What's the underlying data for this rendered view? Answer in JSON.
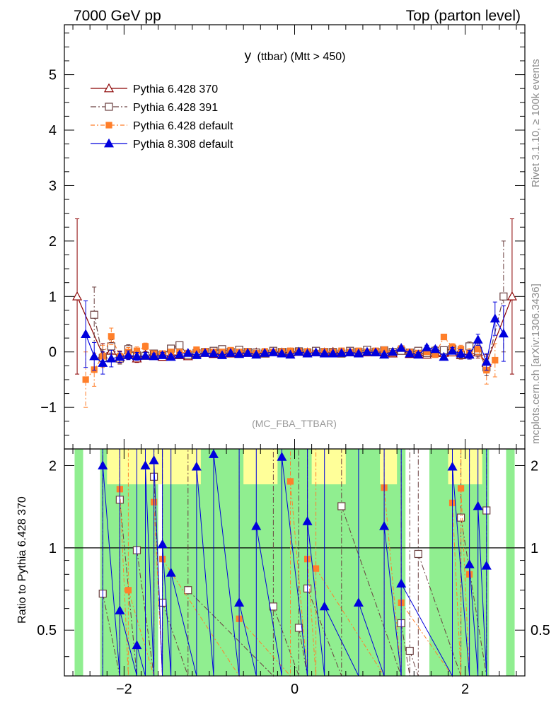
{
  "header": {
    "left": "7000 GeV pp",
    "right": "Top (parton level)"
  },
  "side_labels": {
    "rivet": "Rivet 3.1.10, ≥ 100k events",
    "mcplots": "mcplots.cern.ch [arXiv:1306.3436]"
  },
  "colors": {
    "p6_370": "#8b0000",
    "p6_391": "#6b4040",
    "p6_default": "#ff7f2a",
    "p8_default": "#0000dd",
    "band_green": "#90ee90",
    "band_yellow": "#ffff99"
  },
  "chart_data": [
    {
      "type": "line",
      "title": "y (ttbar) (Mtt > 450)",
      "title_main": "y",
      "title_sub": "(ttbar) (Mtt > 450)",
      "analysis_label": "(MC_FBA_TTBAR)",
      "xlim": [
        -2.7,
        2.7
      ],
      "ylim": [
        -1.75,
        5.9
      ],
      "yticks": [
        -1,
        0,
        1,
        2,
        3,
        4,
        5
      ],
      "ytick_labels": [
        "−1",
        "0",
        "1",
        "2",
        "3",
        "4",
        "5"
      ],
      "legend_position": "top-left",
      "x": [
        -2.55,
        -2.45,
        -2.35,
        -2.25,
        -2.15,
        -2.05,
        -1.95,
        -1.85,
        -1.75,
        -1.65,
        -1.55,
        -1.45,
        -1.35,
        -1.25,
        -1.15,
        -1.05,
        -0.95,
        -0.85,
        -0.75,
        -0.65,
        -0.55,
        -0.45,
        -0.35,
        -0.25,
        -0.15,
        -0.05,
        0.05,
        0.15,
        0.25,
        0.35,
        0.45,
        0.55,
        0.65,
        0.75,
        0.85,
        0.95,
        1.05,
        1.15,
        1.25,
        1.35,
        1.45,
        1.55,
        1.65,
        1.75,
        1.85,
        1.95,
        2.05,
        2.15,
        2.25,
        2.35,
        2.45,
        2.55
      ],
      "series": [
        {
          "name": "Pythia 6.428 370",
          "marker": "triangle-open",
          "dash": "",
          "values": [
            1.0,
            null,
            null,
            -0.05,
            0.02,
            -0.1,
            -0.05,
            -0.12,
            -0.05,
            -0.06,
            -0.09,
            -0.05,
            -0.06,
            -0.08,
            -0.03,
            -0.02,
            -0.04,
            -0.01,
            -0.03,
            -0.01,
            -0.02,
            -0.01,
            -0.03,
            0.0,
            -0.01,
            -0.01,
            0.0,
            -0.01,
            -0.01,
            -0.01,
            0.0,
            -0.01,
            -0.01,
            -0.02,
            -0.01,
            -0.01,
            0.0,
            -0.03,
            0.02,
            -0.04,
            -0.01,
            -0.05,
            -0.02,
            -0.02,
            -0.01,
            -0.06,
            -0.05,
            -0.01,
            -0.2,
            null,
            null,
            1.0
          ],
          "errors": [
            1.4,
            0,
            0,
            0.2,
            0.15,
            0.1,
            0.08,
            0.07,
            0.06,
            0.05,
            0.05,
            0.04,
            0.04,
            0.04,
            0.03,
            0.03,
            0.03,
            0.03,
            0.03,
            0.03,
            0.03,
            0.03,
            0.03,
            0.03,
            0.03,
            0.03,
            0.03,
            0.03,
            0.03,
            0.03,
            0.03,
            0.03,
            0.03,
            0.03,
            0.03,
            0.03,
            0.03,
            0.03,
            0.04,
            0.04,
            0.04,
            0.04,
            0.05,
            0.05,
            0.06,
            0.07,
            0.08,
            0.1,
            0.15,
            0,
            0,
            1.4
          ]
        },
        {
          "name": "Pythia 6.428 391",
          "marker": "square-open",
          "dash": "8,3,2,3",
          "values": [
            null,
            null,
            0.67,
            -0.11,
            0.1,
            -0.12,
            0.05,
            -0.06,
            -0.07,
            -0.03,
            -0.05,
            0.06,
            0.12,
            -0.05,
            -0.02,
            0.0,
            0.02,
            0.05,
            0.0,
            0.04,
            0.0,
            -0.01,
            -0.03,
            0.02,
            0.0,
            0.0,
            0.01,
            -0.01,
            0.02,
            0.0,
            0.0,
            -0.03,
            0.02,
            0.0,
            0.04,
            0.0,
            0.03,
            0.0,
            0.02,
            -0.01,
            0.02,
            -0.02,
            0.02,
            0.03,
            0.05,
            -0.05,
            0.1,
            0.02,
            -0.28,
            null,
            1.0,
            null
          ],
          "errors": [
            0,
            0,
            0.5,
            0.15,
            0.12,
            0.1,
            0.08,
            0.07,
            0.06,
            0.05,
            0.05,
            0.04,
            0.04,
            0.04,
            0.03,
            0.03,
            0.03,
            0.03,
            0.03,
            0.03,
            0.03,
            0.03,
            0.03,
            0.03,
            0.03,
            0.03,
            0.03,
            0.03,
            0.03,
            0.03,
            0.03,
            0.03,
            0.03,
            0.03,
            0.03,
            0.03,
            0.03,
            0.03,
            0.04,
            0.04,
            0.04,
            0.04,
            0.05,
            0.05,
            0.06,
            0.07,
            0.08,
            0.1,
            0.15,
            0,
            1.0,
            0
          ]
        },
        {
          "name": "Pythia 6.428 default",
          "marker": "square-filled",
          "dash": "6,3,2,3",
          "values": [
            null,
            -0.5,
            -0.32,
            -0.08,
            0.28,
            -0.08,
            0.0,
            0.02,
            0.1,
            -0.03,
            -0.03,
            0.0,
            0.0,
            -0.02,
            0.04,
            0.01,
            0.0,
            0.0,
            0.03,
            0.0,
            0.01,
            -0.02,
            0.01,
            0.0,
            0.01,
            0.02,
            0.01,
            0.01,
            -0.02,
            0.01,
            0.0,
            0.02,
            0.0,
            0.02,
            0.0,
            0.02,
            0.04,
            -0.02,
            0.06,
            0.0,
            -0.02,
            0.0,
            -0.05,
            0.27,
            0.09,
            0.05,
            -0.02,
            0.05,
            -0.33,
            -0.15,
            null,
            null
          ],
          "errors": [
            0,
            0.5,
            0.3,
            0.2,
            0.15,
            0.1,
            0.08,
            0.07,
            0.06,
            0.05,
            0.05,
            0.04,
            0.04,
            0.04,
            0.03,
            0.03,
            0.03,
            0.03,
            0.03,
            0.03,
            0.03,
            0.03,
            0.03,
            0.03,
            0.03,
            0.03,
            0.03,
            0.03,
            0.03,
            0.03,
            0.03,
            0.03,
            0.03,
            0.03,
            0.03,
            0.03,
            0.03,
            0.03,
            0.04,
            0.04,
            0.04,
            0.04,
            0.05,
            0.05,
            0.06,
            0.07,
            0.08,
            0.1,
            0.25,
            0.3,
            0,
            0
          ]
        },
        {
          "name": "Pythia 8.308 default",
          "marker": "triangle-filled",
          "dash": "",
          "values": [
            null,
            0.32,
            -0.08,
            -0.2,
            -0.12,
            -0.09,
            -0.06,
            -0.08,
            -0.07,
            -0.08,
            -0.06,
            -0.09,
            -0.05,
            -0.02,
            -0.06,
            -0.02,
            -0.03,
            -0.06,
            -0.02,
            -0.04,
            -0.02,
            -0.05,
            -0.02,
            -0.01,
            -0.03,
            -0.05,
            0.0,
            -0.03,
            -0.01,
            -0.03,
            -0.03,
            -0.02,
            -0.01,
            -0.03,
            0.0,
            -0.01,
            -0.05,
            0.0,
            0.07,
            -0.03,
            -0.05,
            0.08,
            0.05,
            -0.09,
            0.02,
            -0.03,
            -0.05,
            0.22,
            -0.18,
            0.6,
            0.33,
            null
          ],
          "errors": [
            0,
            0.6,
            0.25,
            0.2,
            0.15,
            0.1,
            0.08,
            0.07,
            0.06,
            0.05,
            0.05,
            0.04,
            0.04,
            0.04,
            0.03,
            0.03,
            0.03,
            0.03,
            0.03,
            0.03,
            0.03,
            0.03,
            0.03,
            0.03,
            0.03,
            0.03,
            0.03,
            0.03,
            0.03,
            0.03,
            0.03,
            0.03,
            0.03,
            0.03,
            0.03,
            0.03,
            0.03,
            0.03,
            0.04,
            0.04,
            0.04,
            0.04,
            0.05,
            0.05,
            0.06,
            0.07,
            0.08,
            0.1,
            0.15,
            0.3,
            0.5,
            0
          ]
        }
      ]
    },
    {
      "type": "line",
      "ylabel": "Ratio to Pythia 6.428 370",
      "xlim": [
        -2.7,
        2.7
      ],
      "ylim": [
        0.34,
        2.3
      ],
      "xticks": [
        -2,
        0,
        2
      ],
      "xtick_labels": [
        "−2",
        "0",
        "2"
      ],
      "yticks": [
        0.5,
        1,
        2
      ],
      "ytick_labels": [
        "0.5",
        "1",
        "2"
      ],
      "reference_line": 1,
      "band_green": [
        [
          -2.58,
          -2.48
        ],
        [
          -2.28,
          -1.6
        ],
        [
          -1.55,
          1.3
        ],
        [
          1.58,
          2.28
        ],
        [
          2.48,
          2.58
        ]
      ],
      "band_yellow": [
        [
          -2.2,
          -1.1
        ],
        [
          -0.6,
          -0.2
        ],
        [
          0.2,
          0.6
        ],
        [
          1.0,
          1.2
        ],
        [
          1.8,
          2.2
        ]
      ],
      "series": [
        {
          "name": "Pythia 6.428 391",
          "points": [
            [
              -2.25,
              0.68
            ],
            [
              -2.05,
              1.5
            ],
            [
              -1.85,
              0.98
            ],
            [
              -1.65,
              1.82
            ],
            [
              -1.55,
              0.63
            ],
            [
              -1.25,
              0.7
            ],
            [
              -0.25,
              0.61
            ],
            [
              0.05,
              0.51
            ],
            [
              0.15,
              0.71
            ],
            [
              0.55,
              1.42
            ],
            [
              1.25,
              0.53
            ],
            [
              1.35,
              0.42
            ],
            [
              1.45,
              0.95
            ],
            [
              1.95,
              1.29
            ],
            [
              2.25,
              1.37
            ]
          ]
        },
        {
          "name": "Pythia 6.428 default",
          "points": [
            [
              -2.05,
              1.64
            ],
            [
              -1.95,
              0.7
            ],
            [
              -1.65,
              1.47
            ],
            [
              -1.55,
              0.91
            ],
            [
              -0.65,
              0.55
            ],
            [
              -0.05,
              1.75
            ],
            [
              0.15,
              0.91
            ],
            [
              0.25,
              0.84
            ],
            [
              1.05,
              1.66
            ],
            [
              1.25,
              0.63
            ],
            [
              1.85,
              1.46
            ],
            [
              1.95,
              1.65
            ],
            [
              2.05,
              0.8
            ]
          ]
        },
        {
          "name": "Pythia 8.308 default",
          "points": [
            [
              -2.25,
              2.0
            ],
            [
              -2.05,
              0.59
            ],
            [
              -1.85,
              0.44
            ],
            [
              -1.75,
              2.0
            ],
            [
              -1.65,
              2.09
            ],
            [
              -1.55,
              1.03
            ],
            [
              -1.45,
              0.81
            ],
            [
              -1.15,
              1.98
            ],
            [
              -0.95,
              2.2
            ],
            [
              -0.65,
              0.63
            ],
            [
              -0.45,
              1.2
            ],
            [
              -0.15,
              2.15
            ],
            [
              0.15,
              1.25
            ],
            [
              0.35,
              0.61
            ],
            [
              0.75,
              0.63
            ],
            [
              1.05,
              1.2
            ],
            [
              1.25,
              0.74
            ],
            [
              1.85,
              1.98
            ],
            [
              2.05,
              0.87
            ],
            [
              2.15,
              1.42
            ],
            [
              2.25,
              0.86
            ]
          ]
        }
      ]
    }
  ]
}
